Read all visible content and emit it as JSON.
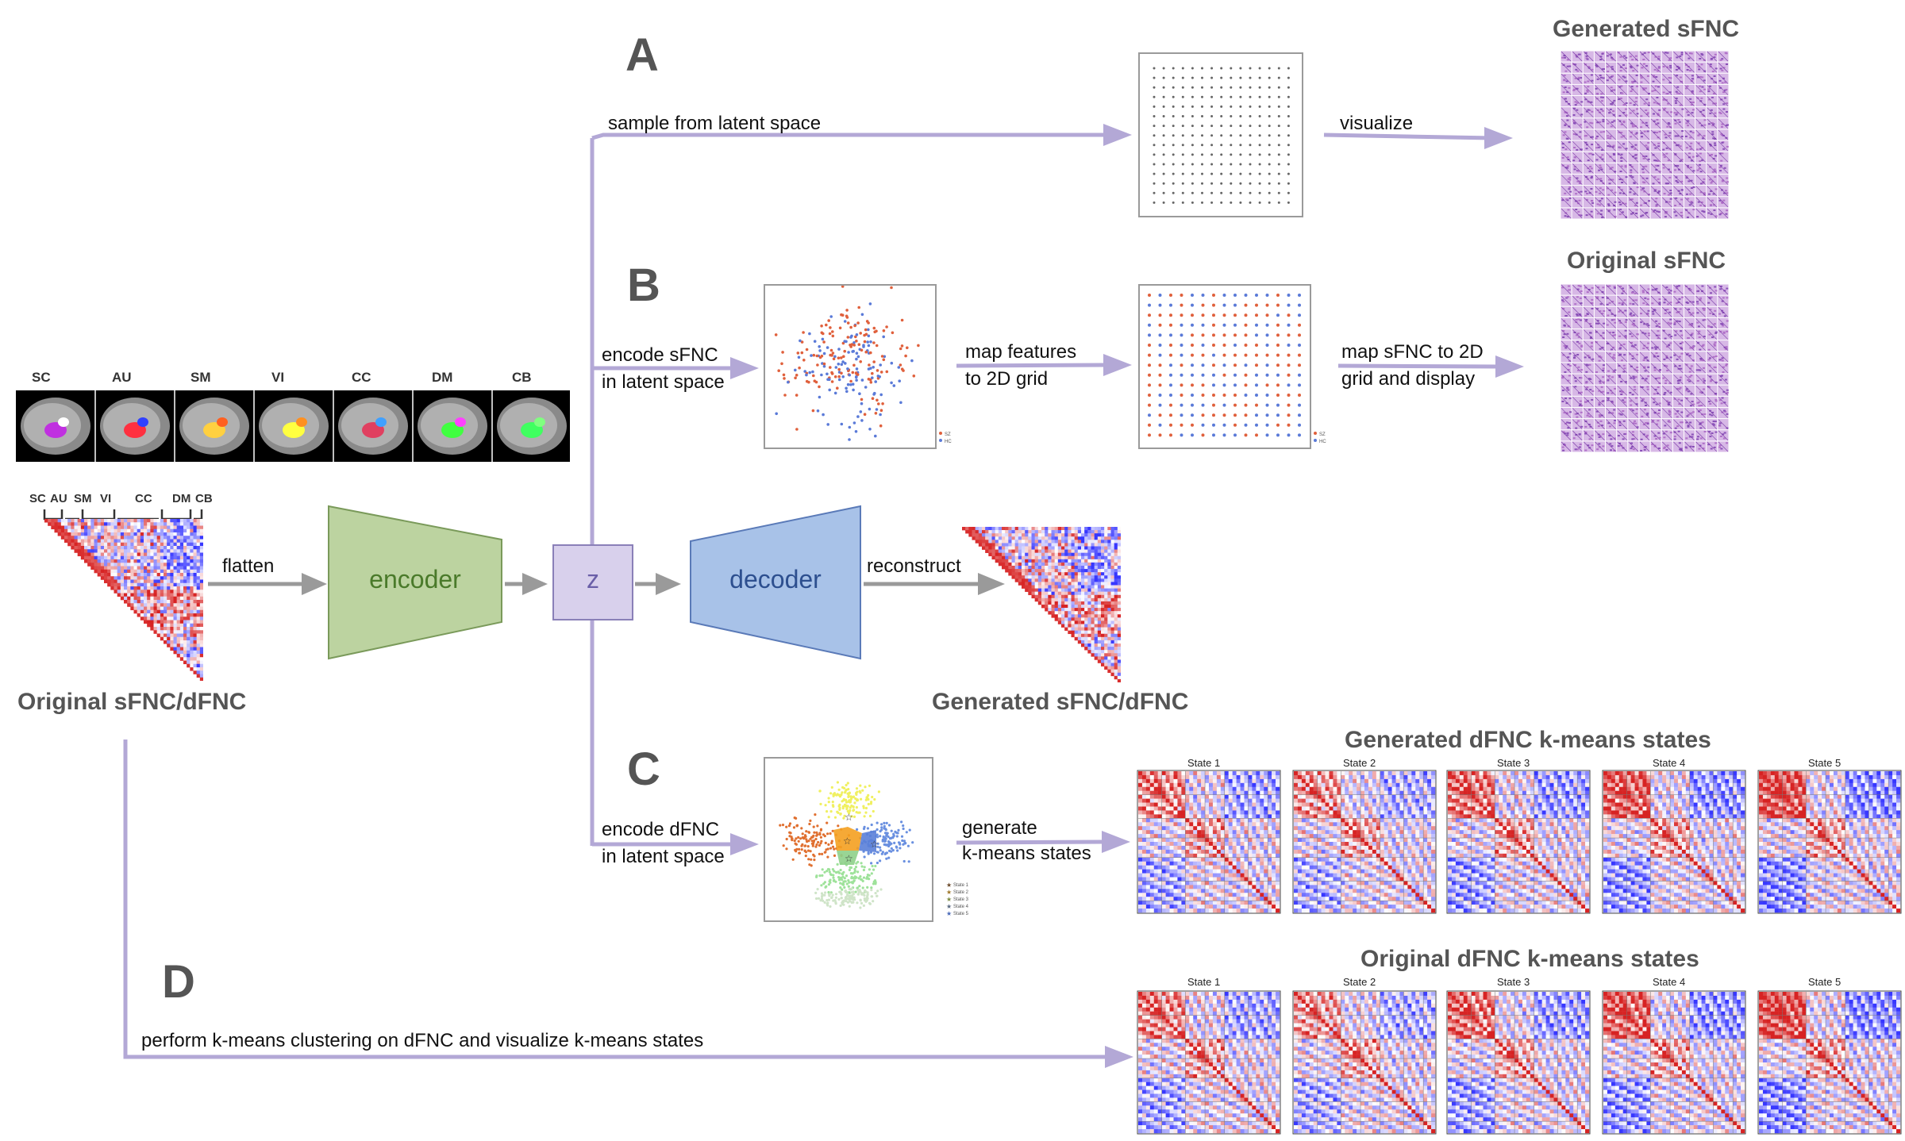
{
  "sections": {
    "a": "A",
    "b": "B",
    "c": "C",
    "d": "D"
  },
  "labels": {
    "sample": "sample from latent space",
    "visualize": "visualize",
    "encode_sfnc_1": "encode sFNC",
    "encode_sfnc_2": "in latent space",
    "map_features_1": "map features",
    "map_features_2": "to 2D grid",
    "map_sfnc_1": "map sFNC to 2D",
    "map_sfnc_2": "grid and display",
    "flatten": "flatten",
    "reconstruct": "reconstruct",
    "encode_dfnc_1": "encode dFNC",
    "encode_dfnc_2": "in latent space",
    "generate_1": "generate",
    "generate_2": "k-means states",
    "kmeans_d": "perform k-means clustering on dFNC and visualize k-means states"
  },
  "titles": {
    "generated_sfnc": "Generated sFNC",
    "original_sfnc": "Original sFNC",
    "original_fnc": "Original sFNC/dFNC",
    "generated_fnc": "Generated sFNC/dFNC",
    "generated_dfnc_states": "Generated dFNC k-means states",
    "original_dfnc_states": "Original dFNC k-means states"
  },
  "blocks": {
    "encoder": "encoder",
    "z": "z",
    "decoder": "decoder"
  },
  "networks_top": [
    "SC",
    "AU",
    "SM",
    "VI",
    "CC",
    "DM",
    "CB"
  ],
  "networks_matrix": [
    "SC",
    "AU",
    "SM",
    "VI",
    "CC",
    "DM",
    "CB"
  ],
  "state_titles": [
    "State 1",
    "State 2",
    "State 3",
    "State 4",
    "State 5"
  ],
  "legend_b": [
    "SZ",
    "HC"
  ],
  "legend_c": [
    "State 1",
    "State 2",
    "State 3",
    "State 4",
    "State 5"
  ],
  "colors": {
    "arrow_purple": "#b3a8d6",
    "arrow_gray": "#9a9a9a",
    "encoder_fill": "#bcd3a0",
    "encoder_stroke": "#7a9a5a",
    "encoder_text": "#4a7a2a",
    "decoder_fill": "#a8c2e8",
    "decoder_stroke": "#5a7ab8",
    "decoder_text": "#2d4f8f",
    "z_fill": "#d8d0ec",
    "z_stroke": "#8a80b8",
    "z_text": "#6a5fa8",
    "sz_red": "#e0603c",
    "hc_blue": "#5a7ad8"
  }
}
